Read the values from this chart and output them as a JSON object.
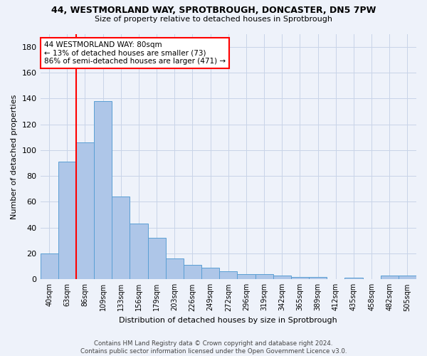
{
  "title_line1": "44, WESTMORLAND WAY, SPROTBROUGH, DONCASTER, DN5 7PW",
  "title_line2": "Size of property relative to detached houses in Sprotbrough",
  "xlabel": "Distribution of detached houses by size in Sprotbrough",
  "ylabel": "Number of detached properties",
  "bar_color": "#aec6e8",
  "bar_edge_color": "#5a9fd4",
  "grid_color": "#c8d4e8",
  "categories": [
    "40sqm",
    "63sqm",
    "86sqm",
    "109sqm",
    "133sqm",
    "156sqm",
    "179sqm",
    "203sqm",
    "226sqm",
    "249sqm",
    "272sqm",
    "296sqm",
    "319sqm",
    "342sqm",
    "365sqm",
    "389sqm",
    "412sqm",
    "435sqm",
    "458sqm",
    "482sqm",
    "505sqm"
  ],
  "values": [
    20,
    91,
    106,
    138,
    64,
    43,
    32,
    16,
    11,
    9,
    6,
    4,
    4,
    3,
    2,
    2,
    0,
    1,
    0,
    3,
    3
  ],
  "ylim": [
    0,
    190
  ],
  "yticks": [
    0,
    20,
    40,
    60,
    80,
    100,
    120,
    140,
    160,
    180
  ],
  "vline_position": 1.5,
  "annotation_text": "44 WESTMORLAND WAY: 80sqm\n← 13% of detached houses are smaller (73)\n86% of semi-detached houses are larger (471) →",
  "annotation_box_color": "white",
  "annotation_box_edge_color": "red",
  "vline_color": "red",
  "footer_line1": "Contains HM Land Registry data © Crown copyright and database right 2024.",
  "footer_line2": "Contains public sector information licensed under the Open Government Licence v3.0.",
  "background_color": "#eef2fa"
}
